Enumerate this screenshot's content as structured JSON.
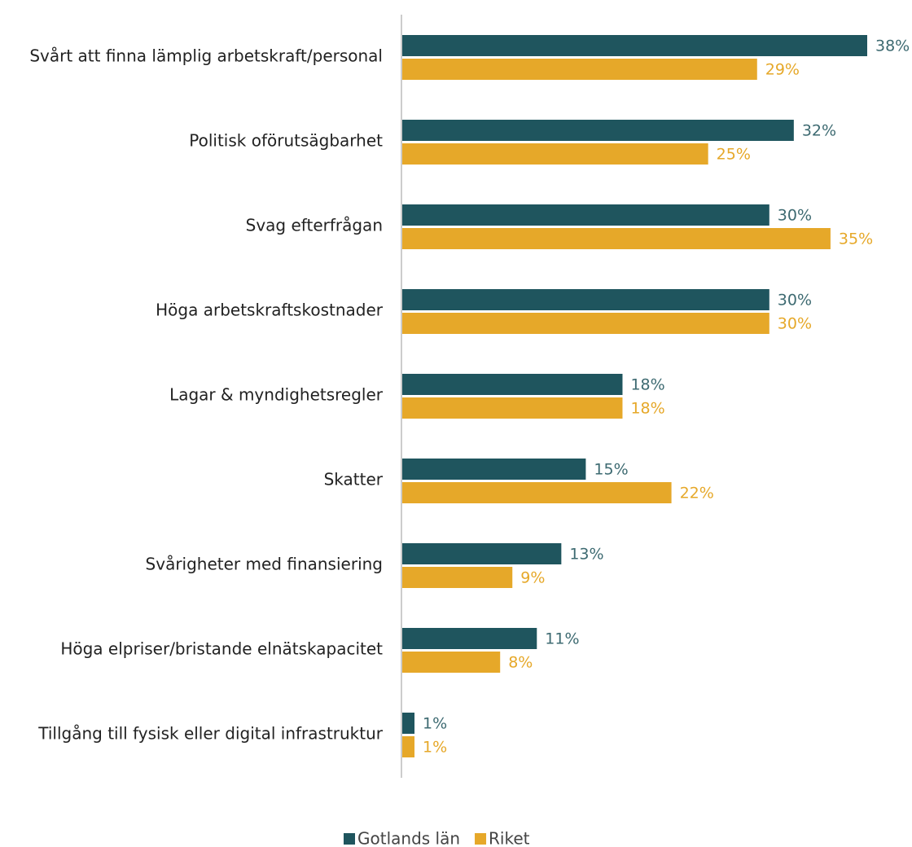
{
  "chart_data": {
    "type": "bar",
    "orientation": "horizontal",
    "categories": [
      "Svårt att finna lämplig arbetskraft/personal",
      "Politisk oförutsägbarhet",
      "Svag efterfrågan",
      "Höga arbetskraftskostnader",
      "Lagar & myndighetsregler",
      "Skatter",
      "Svårigheter med finansiering",
      "Höga elpriser/bristande elnätskapacitet",
      "Tillgång till fysisk eller digital infrastruktur"
    ],
    "series": [
      {
        "name": "Gotlands län",
        "color": "#1f555e",
        "label_color": "#3d6a71",
        "values": [
          38,
          32,
          30,
          30,
          18,
          15,
          13,
          11,
          1
        ],
        "value_labels": [
          "38%",
          "32%",
          "30%",
          "30%",
          "18%",
          "15%",
          "13%",
          "11%",
          "1%"
        ]
      },
      {
        "name": "Riket",
        "color": "#e6a829",
        "label_color": "#e6a829",
        "values": [
          29,
          25,
          35,
          30,
          18,
          22,
          9,
          8,
          1
        ],
        "value_labels": [
          "29%",
          "25%",
          "35%",
          "30%",
          "18%",
          "22%",
          "9%",
          "8%",
          "1%"
        ]
      }
    ],
    "legend": "bottom"
  }
}
